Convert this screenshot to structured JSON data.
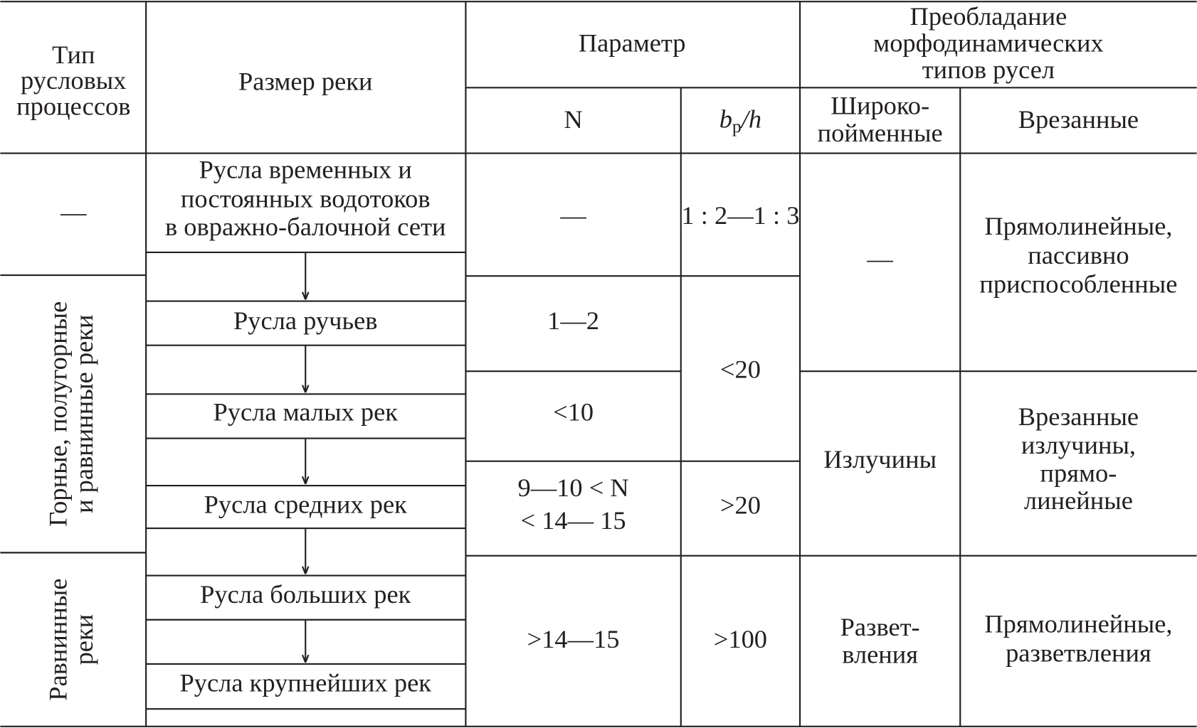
{
  "header": {
    "process_type": [
      "Тип",
      "русловых",
      "процессов"
    ],
    "river_size": "Размер  реки",
    "parameter": "Параметр",
    "n": "N",
    "bp_h": {
      "main": "b",
      "sub": "р",
      "rest": "/h"
    },
    "predominance": [
      "Преобладание",
      "морфодинамических",
      "типов русел"
    ],
    "wide_floodplain": [
      "Широко-",
      "пойменные"
    ],
    "incised": "Врезанные"
  },
  "process_types": [
    [
      "—"
    ],
    [
      "Горные, полугорные",
      "и равнинные реки"
    ],
    [
      "Равнинные",
      "реки"
    ]
  ],
  "river_sizes": [
    [
      "Русла временных и",
      "постоянных водотоков",
      "в овражно-балочной сети"
    ],
    [
      "Русла ручьев"
    ],
    [
      "Русла малых рек"
    ],
    [
      "Русла средних рек"
    ],
    [
      "Русла больших рек"
    ],
    [
      "Русла крупнейших рек"
    ]
  ],
  "n_values": [
    [
      "—"
    ],
    [
      "1—2"
    ],
    [
      "<10"
    ],
    [
      "9—10 < N",
      "< 14— 15"
    ],
    [
      ">14—15"
    ]
  ],
  "bp_h_values": [
    "1 : 2—1 : 3",
    "<20",
    ">20",
    ">100"
  ],
  "wide_floodplain_types": [
    [
      "—"
    ],
    [
      "Излучины"
    ],
    [
      "Развет-",
      "вления"
    ]
  ],
  "incised_types": [
    [
      "Прямолинейные,",
      "пассивно",
      "приспособленные"
    ],
    [
      "Врезанные",
      "излучины,",
      "прямо-",
      "линейные"
    ],
    [
      "Прямолинейные,",
      "разветвления"
    ]
  ]
}
